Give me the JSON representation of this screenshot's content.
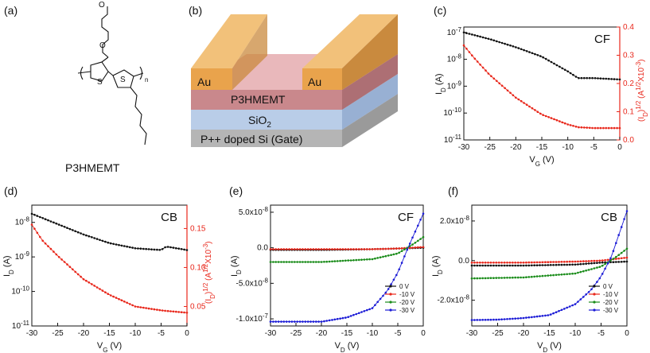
{
  "panels": {
    "a": {
      "label": "(a)",
      "compound": "P3HMEMT",
      "subscript": "n"
    },
    "b": {
      "label": "(b)",
      "electrode_left": "Au",
      "electrode_right": "Au",
      "layer_polymer": "P3HMEMT",
      "layer_oxide": "SiO",
      "layer_oxide_sub": "2",
      "layer_gate": "P++ doped Si (Gate)"
    }
  },
  "colors": {
    "black": "#111111",
    "red": "#e8271b",
    "green": "#1a8c1a",
    "blue": "#1c1cd6",
    "au_top": "#f2c17a",
    "au_front": "#e9a34c",
    "au_side": "#c98a3e",
    "polymer_front": "#c9888c",
    "polymer_top": "#e9b8bb",
    "oxide_front": "#b9cde8",
    "gate_front": "#b5b5b5"
  },
  "chart_data": [
    {
      "id": "c",
      "label": "(c)",
      "type": "line",
      "title": "CF",
      "xlabel": "V",
      "xlabel_sub": "G",
      "xunit": " (V)",
      "ylabel": "I",
      "ylabel_sub": "D",
      "yunit": " (A)",
      "y2label": "(I",
      "y2label_sub": "D",
      "y2label_rest": ")",
      "y2label_sup": "1/2",
      "y2label_unit": " (A",
      "y2label_unit_sup": "1/2",
      "y2label_end": "X10",
      "y2label_end_sup": "-3",
      "y2label_close": ")",
      "xlim": [
        -30,
        0
      ],
      "ylog": true,
      "ylim_exp": [
        -11,
        -6.8
      ],
      "y2lim": [
        0,
        0.4
      ],
      "x_ticks": [
        "-30",
        "-25",
        "-20",
        "-15",
        "-10",
        "-5",
        "0"
      ],
      "y_ticks": [
        "10",
        "10",
        "10",
        "10",
        "10"
      ],
      "y_ticks_exp": [
        "-11",
        "-10",
        "-9",
        "-8",
        "-7"
      ],
      "y2_ticks": [
        "0.0",
        "0.1",
        "0.2",
        "0.3",
        "0.4"
      ],
      "series": [
        {
          "name": "I_D",
          "axis": "left",
          "color": "#111111",
          "x": [
            -30,
            -25,
            -20,
            -15,
            -10,
            -8,
            -5,
            0
          ],
          "log_y": [
            -7.0,
            -7.25,
            -7.55,
            -7.9,
            -8.45,
            -8.7,
            -8.7,
            -8.75
          ]
        },
        {
          "name": "sqrt(I_D)",
          "axis": "right",
          "color": "#e8271b",
          "x": [
            -30,
            -28,
            -25,
            -20,
            -15,
            -10,
            -8,
            -5,
            0
          ],
          "y": [
            0.335,
            0.29,
            0.23,
            0.15,
            0.09,
            0.055,
            0.045,
            0.042,
            0.042
          ]
        }
      ]
    },
    {
      "id": "d",
      "label": "(d)",
      "type": "line",
      "title": "CB",
      "xlabel": "V",
      "xlabel_sub": "G",
      "xunit": " (V)",
      "ylabel": "I",
      "ylabel_sub": "D",
      "yunit": " (A)",
      "y2label": "(I",
      "y2label_sub": "D",
      "y2label_rest": ")",
      "y2label_sup": "1/2",
      "y2label_unit": " (A",
      "y2label_unit_sup": "1/2",
      "y2label_end": "X10",
      "y2label_end_sup": "-3",
      "y2label_close": ")",
      "xlim": [
        -30,
        0
      ],
      "ylog": true,
      "ylim_exp": [
        -11,
        -7.5
      ],
      "y2lim": [
        0.025,
        0.18
      ],
      "x_ticks": [
        "-30",
        "-25",
        "-20",
        "-15",
        "-10",
        "-5",
        "0"
      ],
      "y_ticks": [
        "10",
        "10",
        "10",
        "10"
      ],
      "y_ticks_exp": [
        "-11",
        "-10",
        "-9",
        "-8"
      ],
      "y2_ticks": [
        "0.05",
        "0.10",
        "0.15"
      ],
      "series": [
        {
          "name": "I_D",
          "axis": "left",
          "color": "#111111",
          "x": [
            -30,
            -25,
            -20,
            -15,
            -10,
            -5,
            -4,
            0
          ],
          "log_y": [
            -7.75,
            -8.05,
            -8.35,
            -8.6,
            -8.75,
            -8.8,
            -8.7,
            -8.8
          ]
        },
        {
          "name": "sqrt(I_D)",
          "axis": "right",
          "color": "#e8271b",
          "x": [
            -30,
            -28,
            -25,
            -20,
            -15,
            -10,
            -5,
            0
          ],
          "y": [
            0.155,
            0.135,
            0.115,
            0.085,
            0.065,
            0.05,
            0.045,
            0.042
          ]
        }
      ]
    },
    {
      "id": "e",
      "label": "(e)",
      "type": "line",
      "title": "CF",
      "xlabel": "V",
      "xlabel_sub": "D",
      "xunit": " (V)",
      "ylabel": "I",
      "ylabel_sub": "D",
      "yunit": " (A)",
      "xlim": [
        -30,
        0
      ],
      "ylim": [
        -1.1e-07,
        6e-08
      ],
      "x_ticks": [
        "-30",
        "-25",
        "-20",
        "-15",
        "-10",
        "-5",
        "0"
      ],
      "y_ticks": [
        "-1.0x10",
        "-5.0x10",
        "0.0",
        "5.0x10"
      ],
      "y_ticks_exp": [
        "-7",
        "-8",
        "",
        "-8"
      ],
      "y_tick_values": [
        -1e-07,
        -5e-08,
        0,
        5e-08
      ],
      "legend": [
        "0 V",
        "-10 V",
        "-20 V",
        "-30 V"
      ],
      "series": [
        {
          "name": "0 V",
          "color": "#111111",
          "x": [
            -30,
            -20,
            -10,
            -5,
            0
          ],
          "y": [
            -3e-09,
            -3e-09,
            -2e-09,
            -1e-09,
            0
          ]
        },
        {
          "name": "-10 V",
          "color": "#e8271b",
          "x": [
            -30,
            -20,
            -10,
            -5,
            0
          ],
          "y": [
            -2e-09,
            -2e-09,
            -2e-09,
            -1e-09,
            1e-09
          ]
        },
        {
          "name": "-20 V",
          "color": "#1a8c1a",
          "x": [
            -30,
            -20,
            -10,
            -5,
            -2,
            0
          ],
          "y": [
            -2e-08,
            -2e-08,
            -1.6e-08,
            -8e-09,
            5e-09,
            1.5e-08
          ]
        },
        {
          "name": "-30 V",
          "color": "#1c1cd6",
          "x": [
            -30,
            -25,
            -20,
            -15,
            -10,
            -7,
            -5,
            -3,
            0
          ],
          "y": [
            -1.04e-07,
            -1.04e-07,
            -1.04e-07,
            -9.8e-08,
            -8.5e-08,
            -6e-08,
            -3.5e-08,
            0,
            4.8e-08
          ]
        }
      ]
    },
    {
      "id": "f",
      "label": "(f)",
      "type": "line",
      "title": "CB",
      "xlabel": "V",
      "xlabel_sub": "D",
      "xunit": " (V)",
      "ylabel": "I",
      "ylabel_sub": "D",
      "yunit": " (A)",
      "xlim": [
        -30,
        0
      ],
      "ylim": [
        -3.3e-08,
        2.8e-08
      ],
      "x_ticks": [
        "-30",
        "-25",
        "-20",
        "-15",
        "-10",
        "-5",
        "0"
      ],
      "y_ticks": [
        "-2.0x10",
        "0.0",
        "2.0x10"
      ],
      "y_ticks_exp": [
        "-8",
        "",
        "-8"
      ],
      "y_tick_values": [
        -2e-08,
        0,
        2e-08
      ],
      "legend": [
        "0 V",
        "-10 V",
        "-20 V",
        "-30 V"
      ],
      "series": [
        {
          "name": "0 V",
          "color": "#111111",
          "x": [
            -30,
            -20,
            -10,
            -5,
            0
          ],
          "y": [
            -2.5e-09,
            -2.5e-09,
            -2e-09,
            -1e-09,
            -5e-10
          ]
        },
        {
          "name": "-10 V",
          "color": "#e8271b",
          "x": [
            -30,
            -20,
            -10,
            -5,
            0
          ],
          "y": [
            -1e-09,
            -1e-09,
            -5e-10,
            0,
            1.5e-09
          ]
        },
        {
          "name": "-20 V",
          "color": "#1a8c1a",
          "x": [
            -30,
            -20,
            -10,
            -5,
            -2,
            0
          ],
          "y": [
            -9e-09,
            -8.5e-09,
            -6.5e-09,
            -3e-09,
            2e-09,
            6e-09
          ]
        },
        {
          "name": "-30 V",
          "color": "#1c1cd6",
          "x": [
            -30,
            -25,
            -20,
            -15,
            -10,
            -7,
            -5,
            -3,
            0
          ],
          "y": [
            -3e-08,
            -2.98e-08,
            -2.9e-08,
            -2.75e-08,
            -2.2e-08,
            -1.5e-08,
            -8e-09,
            2e-09,
            2.5e-08
          ]
        }
      ]
    }
  ]
}
